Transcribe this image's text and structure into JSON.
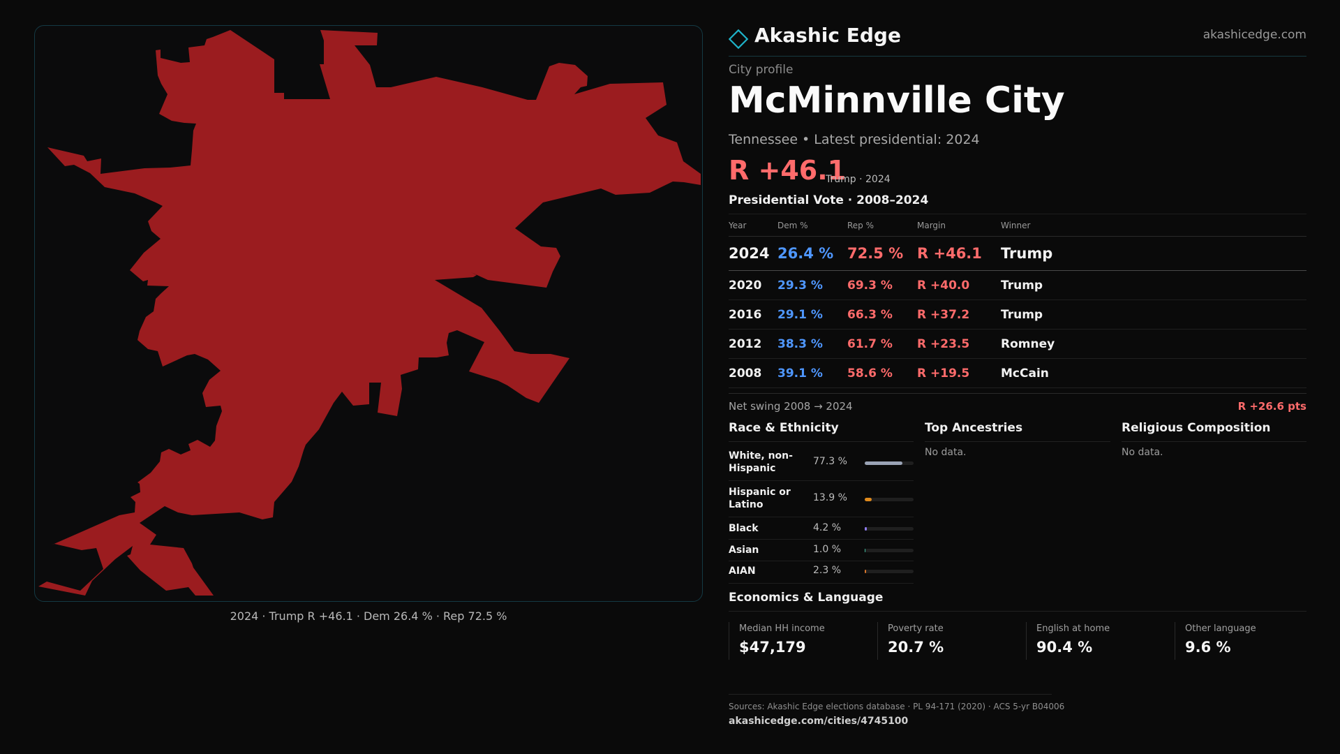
{
  "brand": {
    "name": "Akashic Edge",
    "url": "akashicedge.com",
    "accent": "#1fb3c9"
  },
  "profile": {
    "kicker": "City profile",
    "city": "McMinnville City",
    "subtitle": "Tennessee • Latest presidential: 2024",
    "headline_margin": "R +46.1",
    "headline_note": "Trump · 2024",
    "margin_color": "#ff6b6b",
    "dem_color": "#4f97ff",
    "map_fill": "#9b1c1f"
  },
  "map": {
    "caption": "2024 · Trump R +46.1 · Dem 26.4 % · Rep 72.5 %"
  },
  "vote_table": {
    "title": "Presidential Vote · 2008–2024",
    "headers": [
      "Year",
      "Dem %",
      "Rep %",
      "Margin",
      "Winner"
    ],
    "rows": [
      {
        "year": "2024",
        "dem": "26.4 %",
        "rep": "72.5 %",
        "margin": "R +46.1",
        "winner": "Trump"
      },
      {
        "year": "2020",
        "dem": "29.3 %",
        "rep": "69.3 %",
        "margin": "R +40.0",
        "winner": "Trump"
      },
      {
        "year": "2016",
        "dem": "29.1 %",
        "rep": "66.3 %",
        "margin": "R +37.2",
        "winner": "Trump"
      },
      {
        "year": "2012",
        "dem": "38.3 %",
        "rep": "61.7 %",
        "margin": "R +23.5",
        "winner": "Romney"
      },
      {
        "year": "2008",
        "dem": "39.1 %",
        "rep": "58.6 %",
        "margin": "R +19.5",
        "winner": "McCain"
      }
    ],
    "swing_label": "Net swing 2008 → 2024",
    "swing_value": "R +26.6 pts"
  },
  "race": {
    "title": "Race & Ethnicity",
    "rows": [
      {
        "label": "White, non-Hispanic",
        "pct": "77.3 %",
        "share": 0.773,
        "color": "#9aa3b5"
      },
      {
        "label": "Hispanic or Latino",
        "pct": "13.9 %",
        "share": 0.139,
        "color": "#e08a1c"
      },
      {
        "label": "Black",
        "pct": "4.2 %",
        "share": 0.042,
        "color": "#8f7cf0"
      },
      {
        "label": "Asian",
        "pct": "1.0 %",
        "share": 0.01,
        "color": "#3fb89b"
      },
      {
        "label": "AIAN",
        "pct": "2.3 %",
        "share": 0.023,
        "color": "#d6742a"
      }
    ]
  },
  "ancestry": {
    "title": "Top Ancestries",
    "empty": "No data."
  },
  "religion": {
    "title": "Religious Composition",
    "empty": "No data."
  },
  "economics": {
    "title": "Economics & Language",
    "cards": [
      {
        "label": "Median HH income",
        "value": "$47,179"
      },
      {
        "label": "Poverty rate",
        "value": "20.7 %"
      },
      {
        "label": "English at home",
        "value": "90.4 %"
      },
      {
        "label": "Other language",
        "value": "9.6 %"
      }
    ]
  },
  "footer": {
    "sources": "Sources: Akashic Edge elections database · PL 94-171 (2020) · ACS 5-yr B04006",
    "url": "akashicedge.com/cities/4745100"
  }
}
